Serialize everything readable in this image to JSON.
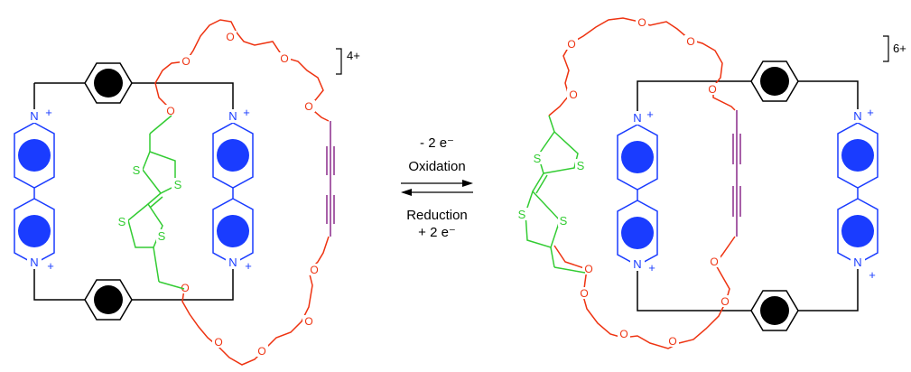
{
  "labels": {
    "sulfur": "S",
    "oxygen": "O",
    "nitrogen": "N",
    "plus": "+",
    "charge_left": "4+",
    "charge_right": "6+"
  },
  "arrow": {
    "forward_line1": "- 2 e⁻",
    "forward_line2": "Oxidation",
    "reverse_line1": "Reduction",
    "reverse_line2": "+ 2 e⁻"
  },
  "colors": {
    "frame": "#000000",
    "pyridinium": "#1a3cff",
    "ttf": "#33cc33",
    "polyether": "#ee3311",
    "alkyne": "#8a2a8a",
    "aromatic_fill": "#000000"
  }
}
